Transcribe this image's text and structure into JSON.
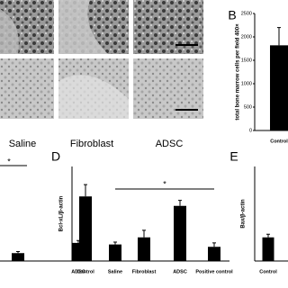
{
  "figure": {
    "captions": [
      "Saline",
      "Fibroblast",
      "ADSC"
    ]
  },
  "chart_data": [
    {
      "type": "bar",
      "label": "B",
      "ylabel": "total bone marrow cells per field 400×",
      "categories": [
        "Control"
      ],
      "values": [
        1820
      ],
      "errors": [
        380
      ],
      "ylim": [
        0,
        2500
      ],
      "yticks": [
        0,
        500,
        1000,
        1500,
        2000,
        2500
      ],
      "color": "#000000"
    },
    {
      "type": "bar",
      "label": "D",
      "ylabel": "Bcl-xL/β-actin",
      "categories": [
        "Control",
        "Saline",
        "Fibroblast",
        "ADSC",
        "Positive control"
      ],
      "values": [
        0.82,
        0.21,
        0.3,
        0.7,
        0.18
      ],
      "errors": [
        0.15,
        0.03,
        0.09,
        0.07,
        0.05
      ],
      "ylim": [
        0,
        1.2
      ],
      "annotation": "*",
      "color": "#000000"
    },
    {
      "type": "bar",
      "label": "E",
      "ylabel": "Bax/β-actin",
      "categories": [
        "Control"
      ],
      "values": [
        0.3
      ],
      "errors": [
        0.04
      ],
      "ylim": [
        0,
        1.2
      ],
      "color": "#000000"
    },
    {
      "type": "bar",
      "categories": [
        null,
        "ADSC"
      ],
      "values": [
        0.1,
        0.23
      ],
      "errors": [
        0.02,
        0.03
      ],
      "ylim": [
        0,
        1.2
      ],
      "annotation": "*",
      "color": "#000000"
    }
  ]
}
